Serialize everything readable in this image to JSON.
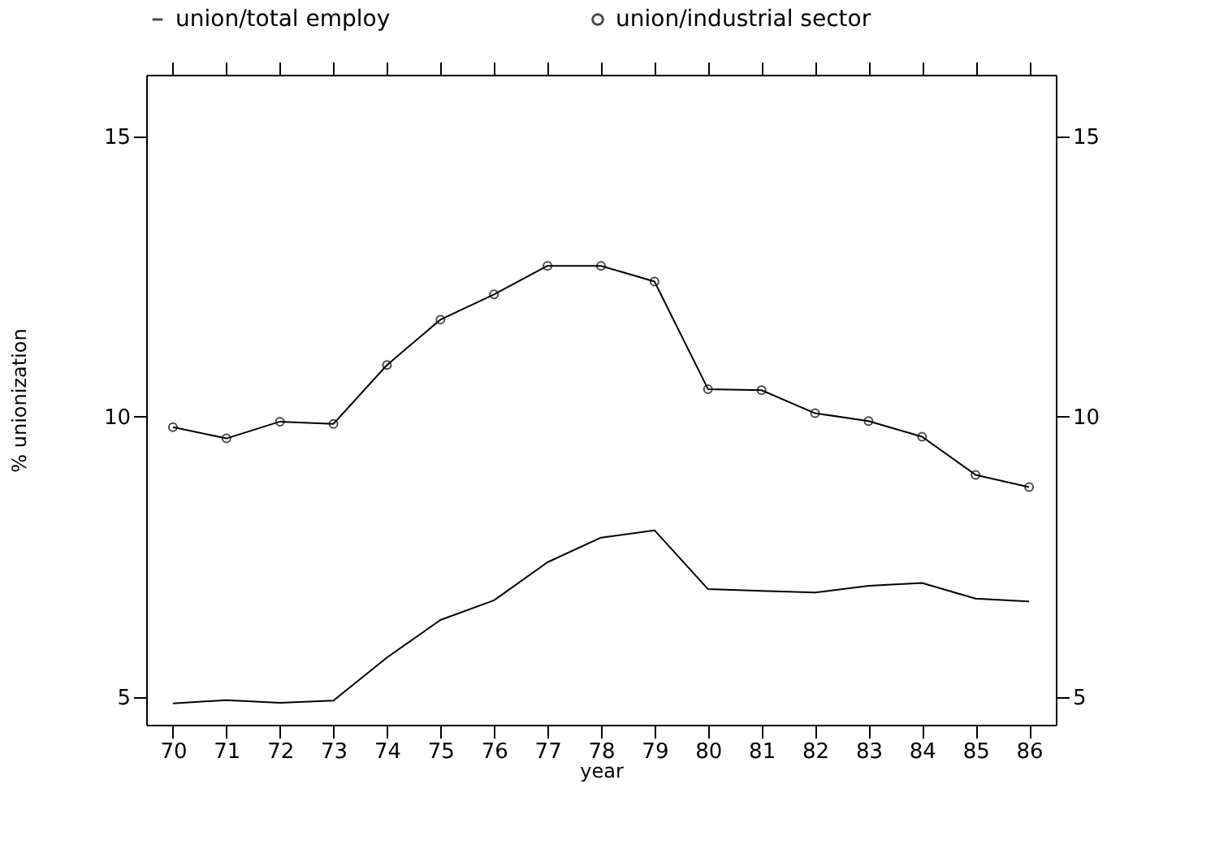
{
  "chart_data": {
    "type": "line",
    "xlabel": "year",
    "ylabel": "% unionization",
    "categories": [
      "70",
      "71",
      "72",
      "73",
      "74",
      "75",
      "76",
      "77",
      "78",
      "79",
      "80",
      "81",
      "82",
      "83",
      "84",
      "85",
      "86"
    ],
    "series": [
      {
        "name": "union/total employ",
        "color": "#000000",
        "marker": "none",
        "values": [
          4.88,
          4.94,
          4.89,
          4.93,
          5.7,
          6.37,
          6.72,
          7.4,
          7.84,
          7.97,
          6.92,
          6.89,
          6.86,
          6.98,
          7.03,
          6.75,
          6.7
        ]
      },
      {
        "name": "union/industrial sector",
        "color": "#000000",
        "marker": "circle",
        "values": [
          9.81,
          9.61,
          9.91,
          9.87,
          10.92,
          11.73,
          12.18,
          12.69,
          12.69,
          12.41,
          10.49,
          10.47,
          10.06,
          9.92,
          9.64,
          8.96,
          8.74
        ]
      }
    ],
    "ylim": [
      4.5,
      16.1
    ],
    "yticks": [
      5,
      10,
      15
    ],
    "y2lim": [
      4.5,
      16.1
    ],
    "y2ticks": [
      5,
      10,
      15
    ],
    "grid": false,
    "legend": "top",
    "line_style": "solid"
  }
}
